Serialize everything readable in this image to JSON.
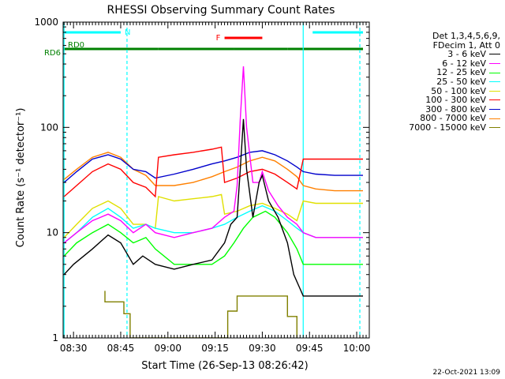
{
  "chart_data": {
    "type": "line",
    "title": "RHESSI Observing Summary Count Rates",
    "xlabel": "Start Time (26-Sep-13 08:26:42)",
    "ylabel": "Count Rate (s⁻¹ detector⁻¹)",
    "x_unit": "minutes after 08:26:42",
    "xlim_time": [
      "08:26:42",
      "10:04:00"
    ],
    "x_ticks": [
      "08:30",
      "08:45",
      "09:00",
      "09:15",
      "09:30",
      "09:45",
      "10:00"
    ],
    "y_scale": "log",
    "ylim": [
      1,
      1000
    ],
    "y_tick_labels": [
      "1",
      "10",
      "100",
      "1000"
    ],
    "legend": {
      "header": [
        "Det 1,3,4,5,6,9,",
        "FDecim 1, Att 0"
      ],
      "placement": "right"
    },
    "series": [
      {
        "name": "3 - 6 keV",
        "color": "#000000",
        "points": [
          [
            "08:27",
            4
          ],
          [
            "08:30",
            5
          ],
          [
            "08:36",
            7
          ],
          [
            "08:41",
            9.5
          ],
          [
            "08:45",
            8
          ],
          [
            "08:49",
            5
          ],
          [
            "08:52",
            6
          ],
          [
            "08:56",
            5
          ],
          [
            "09:02",
            4.5
          ],
          [
            "09:08",
            5
          ],
          [
            "09:14",
            5.5
          ],
          [
            "09:18",
            8
          ],
          [
            "09:20",
            12
          ],
          [
            "09:22",
            14
          ],
          [
            "09:23",
            40
          ],
          [
            "09:24",
            120
          ],
          [
            "09:25",
            40
          ],
          [
            "09:27",
            14
          ],
          [
            "09:29",
            30
          ],
          [
            "09:30",
            35
          ],
          [
            "09:32",
            20
          ],
          [
            "09:35",
            14
          ],
          [
            "09:38",
            8
          ],
          [
            "09:40",
            4
          ],
          [
            "09:43",
            2.5
          ],
          [
            "09:47",
            2.5
          ],
          [
            "09:53",
            2.5
          ],
          [
            "10:00",
            2.5
          ],
          [
            "10:02",
            2.5
          ]
        ]
      },
      {
        "name": "6 - 12 keV",
        "color": "#ff00ff",
        "points": [
          [
            "08:27",
            8
          ],
          [
            "08:31",
            10
          ],
          [
            "08:36",
            13
          ],
          [
            "08:41",
            15
          ],
          [
            "08:45",
            13
          ],
          [
            "08:49",
            10
          ],
          [
            "08:53",
            12
          ],
          [
            "08:56",
            10
          ],
          [
            "09:02",
            9
          ],
          [
            "09:08",
            10
          ],
          [
            "09:14",
            11
          ],
          [
            "09:18",
            14
          ],
          [
            "09:21",
            16
          ],
          [
            "09:22",
            28
          ],
          [
            "09:23",
            120
          ],
          [
            "09:24",
            380
          ],
          [
            "09:25",
            100
          ],
          [
            "09:27",
            30
          ],
          [
            "09:29",
            30
          ],
          [
            "09:30",
            38
          ],
          [
            "09:32",
            25
          ],
          [
            "09:35",
            18
          ],
          [
            "09:38",
            14
          ],
          [
            "09:41",
            12
          ],
          [
            "09:43",
            10
          ],
          [
            "09:47",
            9
          ],
          [
            "09:53",
            9
          ],
          [
            "10:00",
            9
          ],
          [
            "10:02",
            9
          ]
        ]
      },
      {
        "name": "12 - 25 keV",
        "color": "#00ff00",
        "points": [
          [
            "08:27",
            6
          ],
          [
            "08:31",
            8
          ],
          [
            "08:36",
            10
          ],
          [
            "08:41",
            12
          ],
          [
            "08:45",
            10
          ],
          [
            "08:49",
            8
          ],
          [
            "08:53",
            9
          ],
          [
            "08:56",
            7
          ],
          [
            "09:02",
            5
          ],
          [
            "09:08",
            5
          ],
          [
            "09:14",
            5
          ],
          [
            "09:18",
            6
          ],
          [
            "09:21",
            8
          ],
          [
            "09:24",
            11
          ],
          [
            "09:27",
            14
          ],
          [
            "09:31",
            16
          ],
          [
            "09:34",
            14
          ],
          [
            "09:38",
            10
          ],
          [
            "09:41",
            7
          ],
          [
            "09:43",
            5
          ],
          [
            "09:47",
            5
          ],
          [
            "09:53",
            5
          ],
          [
            "10:00",
            5
          ],
          [
            "10:02",
            5
          ]
        ]
      },
      {
        "name": "25 - 50 keV",
        "color": "#00ffff",
        "points": [
          [
            "08:27",
            8
          ],
          [
            "08:31",
            10
          ],
          [
            "08:36",
            14
          ],
          [
            "08:41",
            17
          ],
          [
            "08:45",
            14
          ],
          [
            "08:49",
            11
          ],
          [
            "08:53",
            12
          ],
          [
            "08:56",
            11
          ],
          [
            "09:02",
            10
          ],
          [
            "09:08",
            10
          ],
          [
            "09:14",
            11
          ],
          [
            "09:18",
            12
          ],
          [
            "09:22",
            14
          ],
          [
            "09:26",
            16
          ],
          [
            "09:30",
            18
          ],
          [
            "09:34",
            16
          ],
          [
            "09:38",
            13
          ],
          [
            "09:41",
            11
          ],
          [
            "09:43",
            10
          ],
          [
            "09:47",
            9
          ],
          [
            "09:53",
            9
          ],
          [
            "10:00",
            9
          ],
          [
            "10:02",
            9
          ]
        ]
      },
      {
        "name": "50 - 100 keV",
        "color": "#e0e000",
        "points": [
          [
            "08:27",
            9
          ],
          [
            "08:31",
            12
          ],
          [
            "08:36",
            17
          ],
          [
            "08:41",
            20
          ],
          [
            "08:45",
            17
          ],
          [
            "08:49",
            12
          ],
          [
            "08:53",
            12
          ],
          [
            "08:56",
            11
          ],
          [
            "08:57",
            22
          ],
          [
            "09:02",
            20
          ],
          [
            "09:08",
            21
          ],
          [
            "09:14",
            22
          ],
          [
            "09:17",
            23
          ],
          [
            "09:18",
            15
          ],
          [
            "09:22",
            16
          ],
          [
            "09:26",
            18
          ],
          [
            "09:30",
            19
          ],
          [
            "09:34",
            17
          ],
          [
            "09:38",
            15
          ],
          [
            "09:41",
            13
          ],
          [
            "09:43",
            20
          ],
          [
            "09:47",
            19
          ],
          [
            "09:53",
            19
          ],
          [
            "10:00",
            19
          ],
          [
            "10:02",
            19
          ]
        ]
      },
      {
        "name": "100 - 300 keV",
        "color": "#ff0000",
        "points": [
          [
            "08:27",
            22
          ],
          [
            "08:31",
            28
          ],
          [
            "08:36",
            38
          ],
          [
            "08:41",
            45
          ],
          [
            "08:45",
            40
          ],
          [
            "08:49",
            30
          ],
          [
            "08:53",
            27
          ],
          [
            "08:56",
            22
          ],
          [
            "08:57",
            52
          ],
          [
            "09:02",
            55
          ],
          [
            "09:08",
            58
          ],
          [
            "09:14",
            62
          ],
          [
            "09:17",
            65
          ],
          [
            "09:18",
            30
          ],
          [
            "09:22",
            33
          ],
          [
            "09:26",
            38
          ],
          [
            "09:30",
            40
          ],
          [
            "09:34",
            36
          ],
          [
            "09:38",
            30
          ],
          [
            "09:41",
            26
          ],
          [
            "09:43",
            50
          ],
          [
            "09:47",
            50
          ],
          [
            "09:53",
            50
          ],
          [
            "10:00",
            50
          ],
          [
            "10:02",
            50
          ]
        ]
      },
      {
        "name": "300 - 800 keV",
        "color": "#0000cc",
        "points": [
          [
            "08:27",
            30
          ],
          [
            "08:31",
            38
          ],
          [
            "08:36",
            50
          ],
          [
            "08:41",
            55
          ],
          [
            "08:45",
            50
          ],
          [
            "08:49",
            40
          ],
          [
            "08:53",
            38
          ],
          [
            "08:56",
            33
          ],
          [
            "09:02",
            36
          ],
          [
            "09:08",
            40
          ],
          [
            "09:14",
            45
          ],
          [
            "09:18",
            48
          ],
          [
            "09:22",
            52
          ],
          [
            "09:26",
            58
          ],
          [
            "09:30",
            60
          ],
          [
            "09:34",
            55
          ],
          [
            "09:38",
            48
          ],
          [
            "09:41",
            42
          ],
          [
            "09:43",
            38
          ],
          [
            "09:47",
            36
          ],
          [
            "09:53",
            35
          ],
          [
            "10:00",
            35
          ],
          [
            "10:02",
            35
          ]
        ]
      },
      {
        "name": "800 - 7000 keV",
        "color": "#ff8000",
        "points": [
          [
            "08:27",
            32
          ],
          [
            "08:31",
            40
          ],
          [
            "08:36",
            52
          ],
          [
            "08:41",
            58
          ],
          [
            "08:45",
            52
          ],
          [
            "08:49",
            40
          ],
          [
            "08:53",
            35
          ],
          [
            "08:56",
            28
          ],
          [
            "09:02",
            28
          ],
          [
            "09:08",
            30
          ],
          [
            "09:14",
            34
          ],
          [
            "09:18",
            38
          ],
          [
            "09:22",
            42
          ],
          [
            "09:26",
            48
          ],
          [
            "09:30",
            52
          ],
          [
            "09:34",
            48
          ],
          [
            "09:38",
            40
          ],
          [
            "09:41",
            34
          ],
          [
            "09:43",
            28
          ],
          [
            "09:47",
            26
          ],
          [
            "09:53",
            25
          ],
          [
            "10:00",
            25
          ],
          [
            "10:02",
            25
          ]
        ]
      },
      {
        "name": "7000 - 15000 keV",
        "color": "#808000",
        "points": [
          [
            "08:40",
            2.8
          ],
          [
            "08:40",
            2.2
          ],
          [
            "08:46",
            2.2
          ],
          [
            "08:46",
            1.7
          ],
          [
            "08:48",
            1.7
          ],
          [
            "08:48",
            1
          ],
          [
            "09:19",
            1
          ],
          [
            "09:19",
            1.8
          ],
          [
            "09:22",
            1.8
          ],
          [
            "09:22",
            2.5
          ],
          [
            "09:38",
            2.5
          ],
          [
            "09:38",
            1.6
          ],
          [
            "09:41",
            1.6
          ],
          [
            "09:41",
            1
          ]
        ]
      }
    ],
    "status_bars": [
      {
        "label": "N",
        "color": "#00ffff",
        "segments": [
          [
            "08:26:42",
            "08:45"
          ],
          [
            "09:46",
            "10:02"
          ]
        ]
      },
      {
        "label": "F",
        "color": "#ff0000",
        "segments": [
          [
            "09:18",
            "09:30"
          ]
        ]
      },
      {
        "label": "RD6",
        "color": "#008000",
        "segments": [
          [
            "08:26:42",
            "08:57"
          ],
          [
            "08:57",
            "09:21"
          ],
          [
            "09:21",
            "09:38"
          ],
          [
            "09:38",
            "10:02"
          ]
        ]
      },
      {
        "label": "RD0",
        "color": "#008000",
        "segments": []
      }
    ],
    "vertical_markers": {
      "solid_cyan": [
        "08:27",
        "09:43"
      ],
      "dashed_cyan": [
        "08:47",
        "10:01"
      ]
    },
    "grid": false
  },
  "footer": {
    "date": "22-Oct-2021 13:09"
  }
}
